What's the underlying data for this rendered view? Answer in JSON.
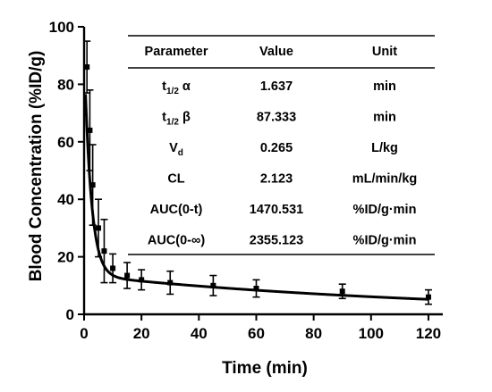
{
  "chart_data": {
    "type": "scatter",
    "title": "",
    "xlabel": "Time (min)",
    "ylabel": "Blood Concentration (%ID/g)",
    "xlim": [
      0,
      125
    ],
    "ylim": [
      0,
      100
    ],
    "xticks": [
      0,
      20,
      40,
      60,
      80,
      100,
      120
    ],
    "yticks": [
      0,
      20,
      40,
      60,
      80,
      100
    ],
    "grid": false,
    "series": [
      {
        "x": [
          1,
          2,
          3,
          5,
          7,
          10,
          15,
          20,
          30,
          45,
          60,
          90,
          120
        ],
        "y": [
          86,
          64,
          45,
          30,
          22,
          16,
          13.5,
          12,
          11,
          10,
          9,
          8,
          6
        ],
        "error": [
          9,
          14,
          14,
          10,
          11,
          5,
          4.5,
          3.5,
          4,
          3.5,
          3,
          2.5,
          2.5
        ]
      }
    ],
    "fit_curve": {
      "model": "two-compartment bi-exponential",
      "A": 78,
      "alpha": 0.4234,
      "B": 13.5,
      "beta": 0.007937
    },
    "table": {
      "headers": [
        "Parameter",
        "Value",
        "Unit"
      ],
      "rows": [
        {
          "param_main": "t",
          "param_sub": "1/2",
          "param_suffix": " α",
          "value": "1.637",
          "unit": "min"
        },
        {
          "param_main": "t",
          "param_sub": "1/2",
          "param_suffix": " β",
          "value": "87.333",
          "unit": "min"
        },
        {
          "param_main": "V",
          "param_sub": "d",
          "param_suffix": "",
          "value": "0.265",
          "unit": "L/kg"
        },
        {
          "param_main": "CL",
          "param_sub": "",
          "param_suffix": "",
          "value": "2.123",
          "unit": "mL/min/kg"
        },
        {
          "param_main": "AUC(0-t)",
          "param_sub": "",
          "param_suffix": "",
          "value": "1470.531",
          "unit": "%ID/g·min"
        },
        {
          "param_main": "AUC(0-∞)",
          "param_sub": "",
          "param_suffix": "",
          "value": "2355.123",
          "unit": "%ID/g·min"
        }
      ]
    }
  }
}
